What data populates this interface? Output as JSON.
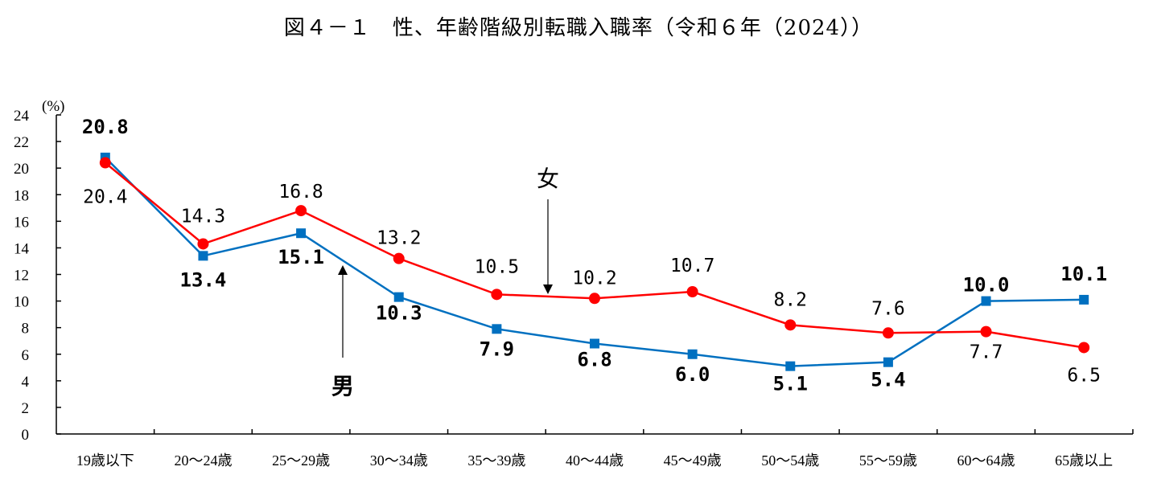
{
  "chart_data": {
    "type": "line",
    "title": "図４－１　性、年齢階級別転職入職率（令和６年（2024））",
    "ylabel": "(%)",
    "ylim": [
      0,
      24
    ],
    "yticks": [
      "0",
      "2",
      "4",
      "6",
      "8",
      "10",
      "12",
      "14",
      "16",
      "18",
      "20",
      "22",
      "24"
    ],
    "categories": [
      "19歳以下",
      "20～24歳",
      "25～29歳",
      "30～34歳",
      "35～39歳",
      "40～44歳",
      "45～49歳",
      "50～54歳",
      "55～59歳",
      "60～64歳",
      "65歳以上"
    ],
    "grid": false,
    "series": [
      {
        "name": "男",
        "color": "#0070C0",
        "marker": "square",
        "values": [
          20.8,
          13.4,
          15.1,
          10.3,
          7.9,
          6.8,
          6.0,
          5.1,
          5.4,
          10.0,
          10.1
        ],
        "labels": [
          "20.8",
          "13.4",
          "15.1",
          "10.3",
          "7.9",
          "6.8",
          "6.0",
          "5.1",
          "5.4",
          "10.0",
          "10.1"
        ]
      },
      {
        "name": "女",
        "color": "#FF0000",
        "marker": "circle",
        "values": [
          20.4,
          14.3,
          16.8,
          13.2,
          10.5,
          10.2,
          10.7,
          8.2,
          7.6,
          7.7,
          6.5
        ],
        "labels": [
          "20.4",
          "14.3",
          "16.8",
          "13.2",
          "10.5",
          "10.2",
          "10.7",
          "8.2",
          "7.6",
          "7.7",
          "6.5"
        ]
      }
    ]
  }
}
